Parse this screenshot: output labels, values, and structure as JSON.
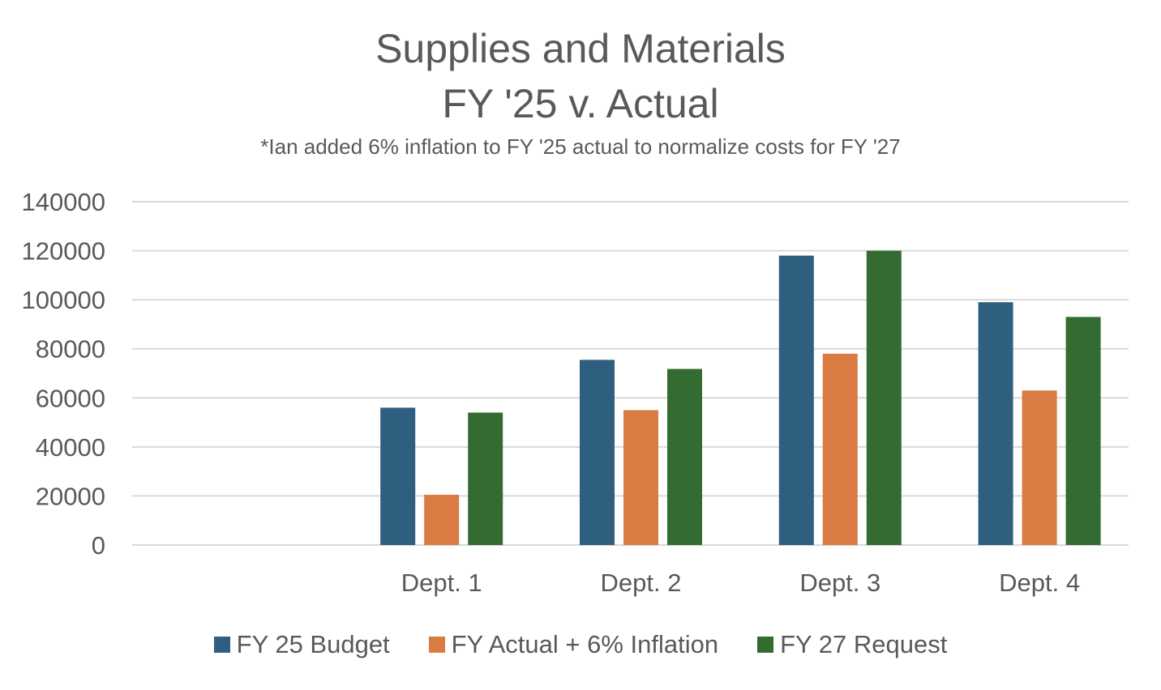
{
  "title_line1": "Supplies and Materials",
  "title_line2": "FY '25 v. Actual",
  "subtitle": "*Ian added 6% inflation to FY '25 actual to normalize costs for FY '27",
  "chart_data": {
    "type": "bar",
    "title": "Supplies and Materials FY '25 v. Actual",
    "subtitle": "*Ian added 6% inflation to FY '25 actual to normalize costs for FY '27",
    "categories": [
      "",
      "Dept. 1",
      "Dept. 2",
      "Dept. 3",
      "Dept. 4"
    ],
    "series": [
      {
        "name": "FY 25 Budget",
        "color": "#2e5f7f",
        "values": [
          null,
          56000,
          75500,
          118000,
          99000
        ]
      },
      {
        "name": "FY Actual + 6% Inflation",
        "color": "#d97b42",
        "values": [
          null,
          20500,
          55000,
          78000,
          63000
        ]
      },
      {
        "name": "FY 27 Request",
        "color": "#346b30",
        "values": [
          null,
          54000,
          71800,
          120000,
          93000
        ]
      }
    ],
    "ylim": [
      0,
      140000
    ],
    "yticks": [
      "0",
      "20000",
      "40000",
      "60000",
      "80000",
      "100000",
      "120000",
      "140000"
    ],
    "grid": true,
    "legend_position": "bottom",
    "xlabel": "",
    "ylabel": ""
  }
}
